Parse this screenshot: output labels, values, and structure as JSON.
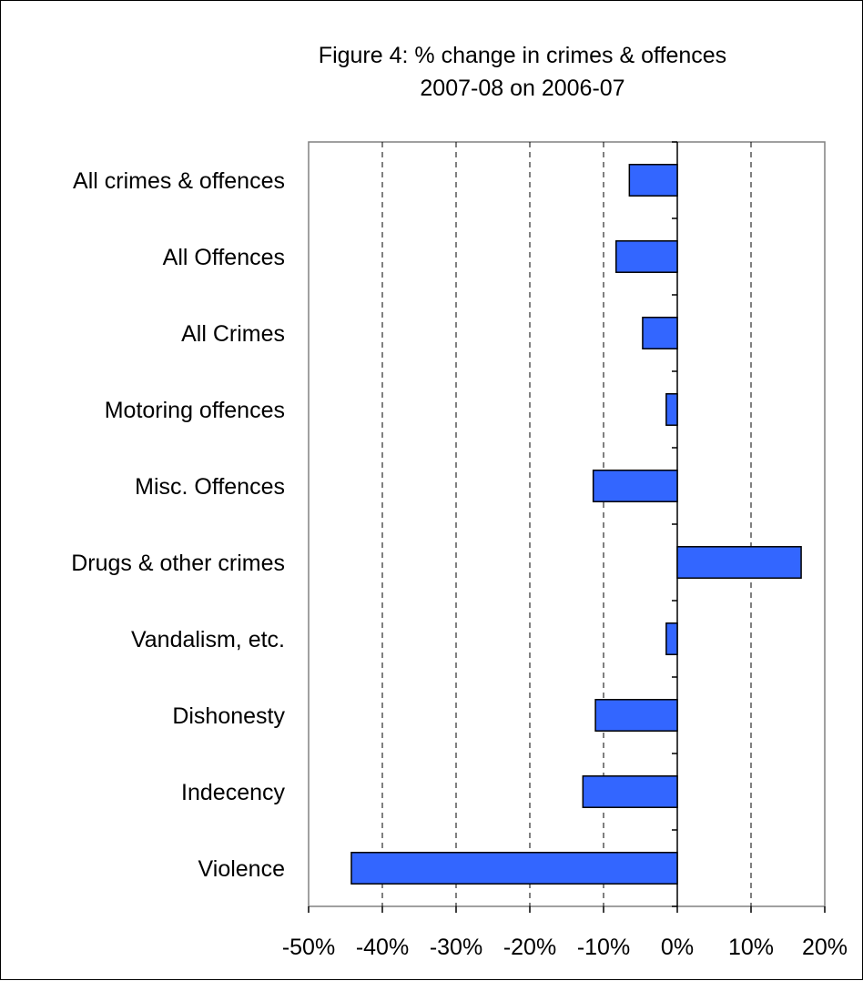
{
  "chart_data": {
    "type": "bar",
    "orientation": "horizontal",
    "title": [
      "Figure 4: % change in crimes & offences",
      "2007-08 on 2006-07"
    ],
    "categories": [
      "All crimes & offences",
      "All Offences",
      "All Crimes",
      "Motoring offences",
      "Misc. Offences",
      "Drugs & other crimes",
      "Vandalism, etc.",
      "Dishonesty",
      "Indecency",
      "Violence"
    ],
    "values": [
      -6.5,
      -8.3,
      -4.7,
      -1.5,
      -11.4,
      16.8,
      -1.5,
      -11.1,
      -12.8,
      -44.2
    ],
    "xlim": [
      -50,
      20
    ],
    "xticks": [
      -50,
      -40,
      -30,
      -20,
      -10,
      0,
      10,
      20
    ],
    "xtick_labels": [
      "-50%",
      "-40%",
      "-30%",
      "-20%",
      "-10%",
      "0%",
      "10%",
      "20%"
    ],
    "gridlines": "vertical-dashed",
    "bar_color": "#3366FF",
    "legend": "none"
  }
}
